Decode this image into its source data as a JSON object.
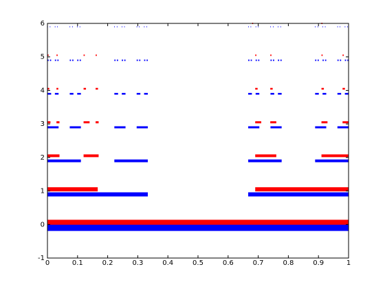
{
  "chart_data": {
    "type": "segments",
    "xlim": [
      0,
      1
    ],
    "ylim": [
      -1,
      6
    ],
    "xticks": [
      0,
      0.1,
      0.2,
      0.3,
      0.4,
      0.5,
      0.6,
      0.7,
      0.8,
      0.9,
      1
    ],
    "yticks": [
      -1,
      0,
      1,
      2,
      3,
      4,
      5,
      6
    ],
    "series": [
      {
        "color": "#ff0000",
        "levels": [
          {
            "y": 0.05,
            "intervals": [
              [
                0,
                1
              ]
            ]
          },
          {
            "y": 1.05,
            "intervals": [
              [
                0,
                0.167
              ],
              [
                0.69,
                1
              ]
            ]
          },
          {
            "y": 2.05,
            "intervals": [
              [
                0,
                0.04
              ],
              [
                0.12,
                0.17
              ],
              [
                0.69,
                0.76
              ],
              [
                0.91,
                1
              ]
            ]
          },
          {
            "y": 3.05,
            "intervals": [
              [
                0,
                0.01
              ],
              [
                0.03,
                0.04
              ],
              [
                0.12,
                0.14
              ],
              [
                0.16,
                0.17
              ],
              [
                0.69,
                0.71
              ],
              [
                0.74,
                0.76
              ],
              [
                0.91,
                0.93
              ],
              [
                0.98,
                1
              ]
            ]
          },
          {
            "y": 4.05,
            "intervals": [
              [
                0,
                0.006
              ],
              [
                0.03,
                0.036
              ],
              [
                0.12,
                0.128
              ],
              [
                0.16,
                0.168
              ],
              [
                0.69,
                0.698
              ],
              [
                0.74,
                0.748
              ],
              [
                0.91,
                0.918
              ],
              [
                0.98,
                0.988
              ]
            ]
          },
          {
            "y": 5.05,
            "intervals": [
              [
                0,
                0.004
              ],
              [
                0.03,
                0.034
              ],
              [
                0.12,
                0.124
              ],
              [
                0.16,
                0.164
              ],
              [
                0.69,
                0.694
              ],
              [
                0.74,
                0.744
              ],
              [
                0.91,
                0.914
              ],
              [
                0.98,
                0.984
              ]
            ]
          },
          {
            "y": 6.0,
            "intervals": [
              [
                0.68,
                0.683
              ],
              [
                0.91,
                0.913
              ]
            ]
          }
        ]
      },
      {
        "color": "#0000ff",
        "levels": [
          {
            "y": -0.1,
            "intervals": [
              [
                0,
                1
              ]
            ]
          },
          {
            "y": 0.9,
            "intervals": [
              [
                0,
                0.3333
              ],
              [
                0.6667,
                1
              ]
            ]
          },
          {
            "y": 1.9,
            "intervals": [
              [
                0,
                0.1111
              ],
              [
                0.2222,
                0.3333
              ],
              [
                0.6667,
                0.7778
              ],
              [
                0.8889,
                1
              ]
            ]
          },
          {
            "y": 2.9,
            "intervals": [
              [
                0,
                0.037
              ],
              [
                0.0741,
                0.1111
              ],
              [
                0.2222,
                0.2593
              ],
              [
                0.2963,
                0.3333
              ],
              [
                0.6667,
                0.7037
              ],
              [
                0.7407,
                0.7778
              ],
              [
                0.8889,
                0.9259
              ],
              [
                0.963,
                1
              ]
            ]
          },
          {
            "y": 3.9,
            "intervals": [
              [
                0,
                0.0123
              ],
              [
                0.0247,
                0.037
              ],
              [
                0.0741,
                0.0864
              ],
              [
                0.0988,
                0.1111
              ],
              [
                0.2222,
                0.2346
              ],
              [
                0.2469,
                0.2593
              ],
              [
                0.2963,
                0.3086
              ],
              [
                0.321,
                0.3333
              ],
              [
                0.6667,
                0.679
              ],
              [
                0.6914,
                0.7037
              ],
              [
                0.7407,
                0.7531
              ],
              [
                0.7654,
                0.7778
              ],
              [
                0.8889,
                0.9012
              ],
              [
                0.9136,
                0.9259
              ],
              [
                0.963,
                0.9753
              ],
              [
                0.9877,
                1
              ]
            ]
          },
          {
            "y": 4.9,
            "intervals": [
              [
                0,
                0.0041
              ],
              [
                0.0082,
                0.0123
              ],
              [
                0.0247,
                0.0288
              ],
              [
                0.0329,
                0.037
              ],
              [
                0.0741,
                0.0782
              ],
              [
                0.0823,
                0.0864
              ],
              [
                0.0988,
                0.1029
              ],
              [
                0.107,
                0.1111
              ],
              [
                0.2222,
                0.2263
              ],
              [
                0.2305,
                0.2346
              ],
              [
                0.2469,
                0.251
              ],
              [
                0.2551,
                0.2593
              ],
              [
                0.2963,
                0.3004
              ],
              [
                0.3045,
                0.3086
              ],
              [
                0.321,
                0.3251
              ],
              [
                0.3292,
                0.3333
              ],
              [
                0.6667,
                0.6708
              ],
              [
                0.6749,
                0.679
              ],
              [
                0.6914,
                0.6955
              ],
              [
                0.6996,
                0.7037
              ],
              [
                0.7407,
                0.7449
              ],
              [
                0.749,
                0.7531
              ],
              [
                0.7654,
                0.7695
              ],
              [
                0.7737,
                0.7778
              ],
              [
                0.8889,
                0.893
              ],
              [
                0.8971,
                0.9012
              ],
              [
                0.9136,
                0.9177
              ],
              [
                0.9218,
                0.9259
              ],
              [
                0.963,
                0.9671
              ],
              [
                0.9712,
                0.9753
              ],
              [
                0.9877,
                0.9918
              ],
              [
                0.9959,
                1
              ]
            ]
          },
          {
            "y": 5.9,
            "intervals": [
              [
                0,
                0.0014
              ],
              [
                0.0082,
                0.0096
              ],
              [
                0.0247,
                0.0261
              ],
              [
                0.0329,
                0.0343
              ],
              [
                0.0741,
                0.0755
              ],
              [
                0.0823,
                0.0837
              ],
              [
                0.0988,
                0.1002
              ],
              [
                0.107,
                0.1084
              ],
              [
                0.2222,
                0.2236
              ],
              [
                0.2305,
                0.2319
              ],
              [
                0.2469,
                0.2483
              ],
              [
                0.2551,
                0.2565
              ],
              [
                0.2963,
                0.2977
              ],
              [
                0.3045,
                0.3059
              ],
              [
                0.321,
                0.3224
              ],
              [
                0.3292,
                0.3306
              ],
              [
                0.6667,
                0.6681
              ],
              [
                0.6749,
                0.6763
              ],
              [
                0.6914,
                0.6928
              ],
              [
                0.6996,
                0.701
              ],
              [
                0.7407,
                0.7421
              ],
              [
                0.749,
                0.7504
              ],
              [
                0.7654,
                0.7668
              ],
              [
                0.7737,
                0.7751
              ],
              [
                0.8889,
                0.8903
              ],
              [
                0.8971,
                0.8985
              ],
              [
                0.9136,
                0.915
              ],
              [
                0.9218,
                0.9232
              ],
              [
                0.963,
                0.9644
              ],
              [
                0.9712,
                0.9726
              ],
              [
                0.9877,
                0.9891
              ],
              [
                0.9959,
                0.9973
              ]
            ]
          }
        ]
      }
    ]
  }
}
